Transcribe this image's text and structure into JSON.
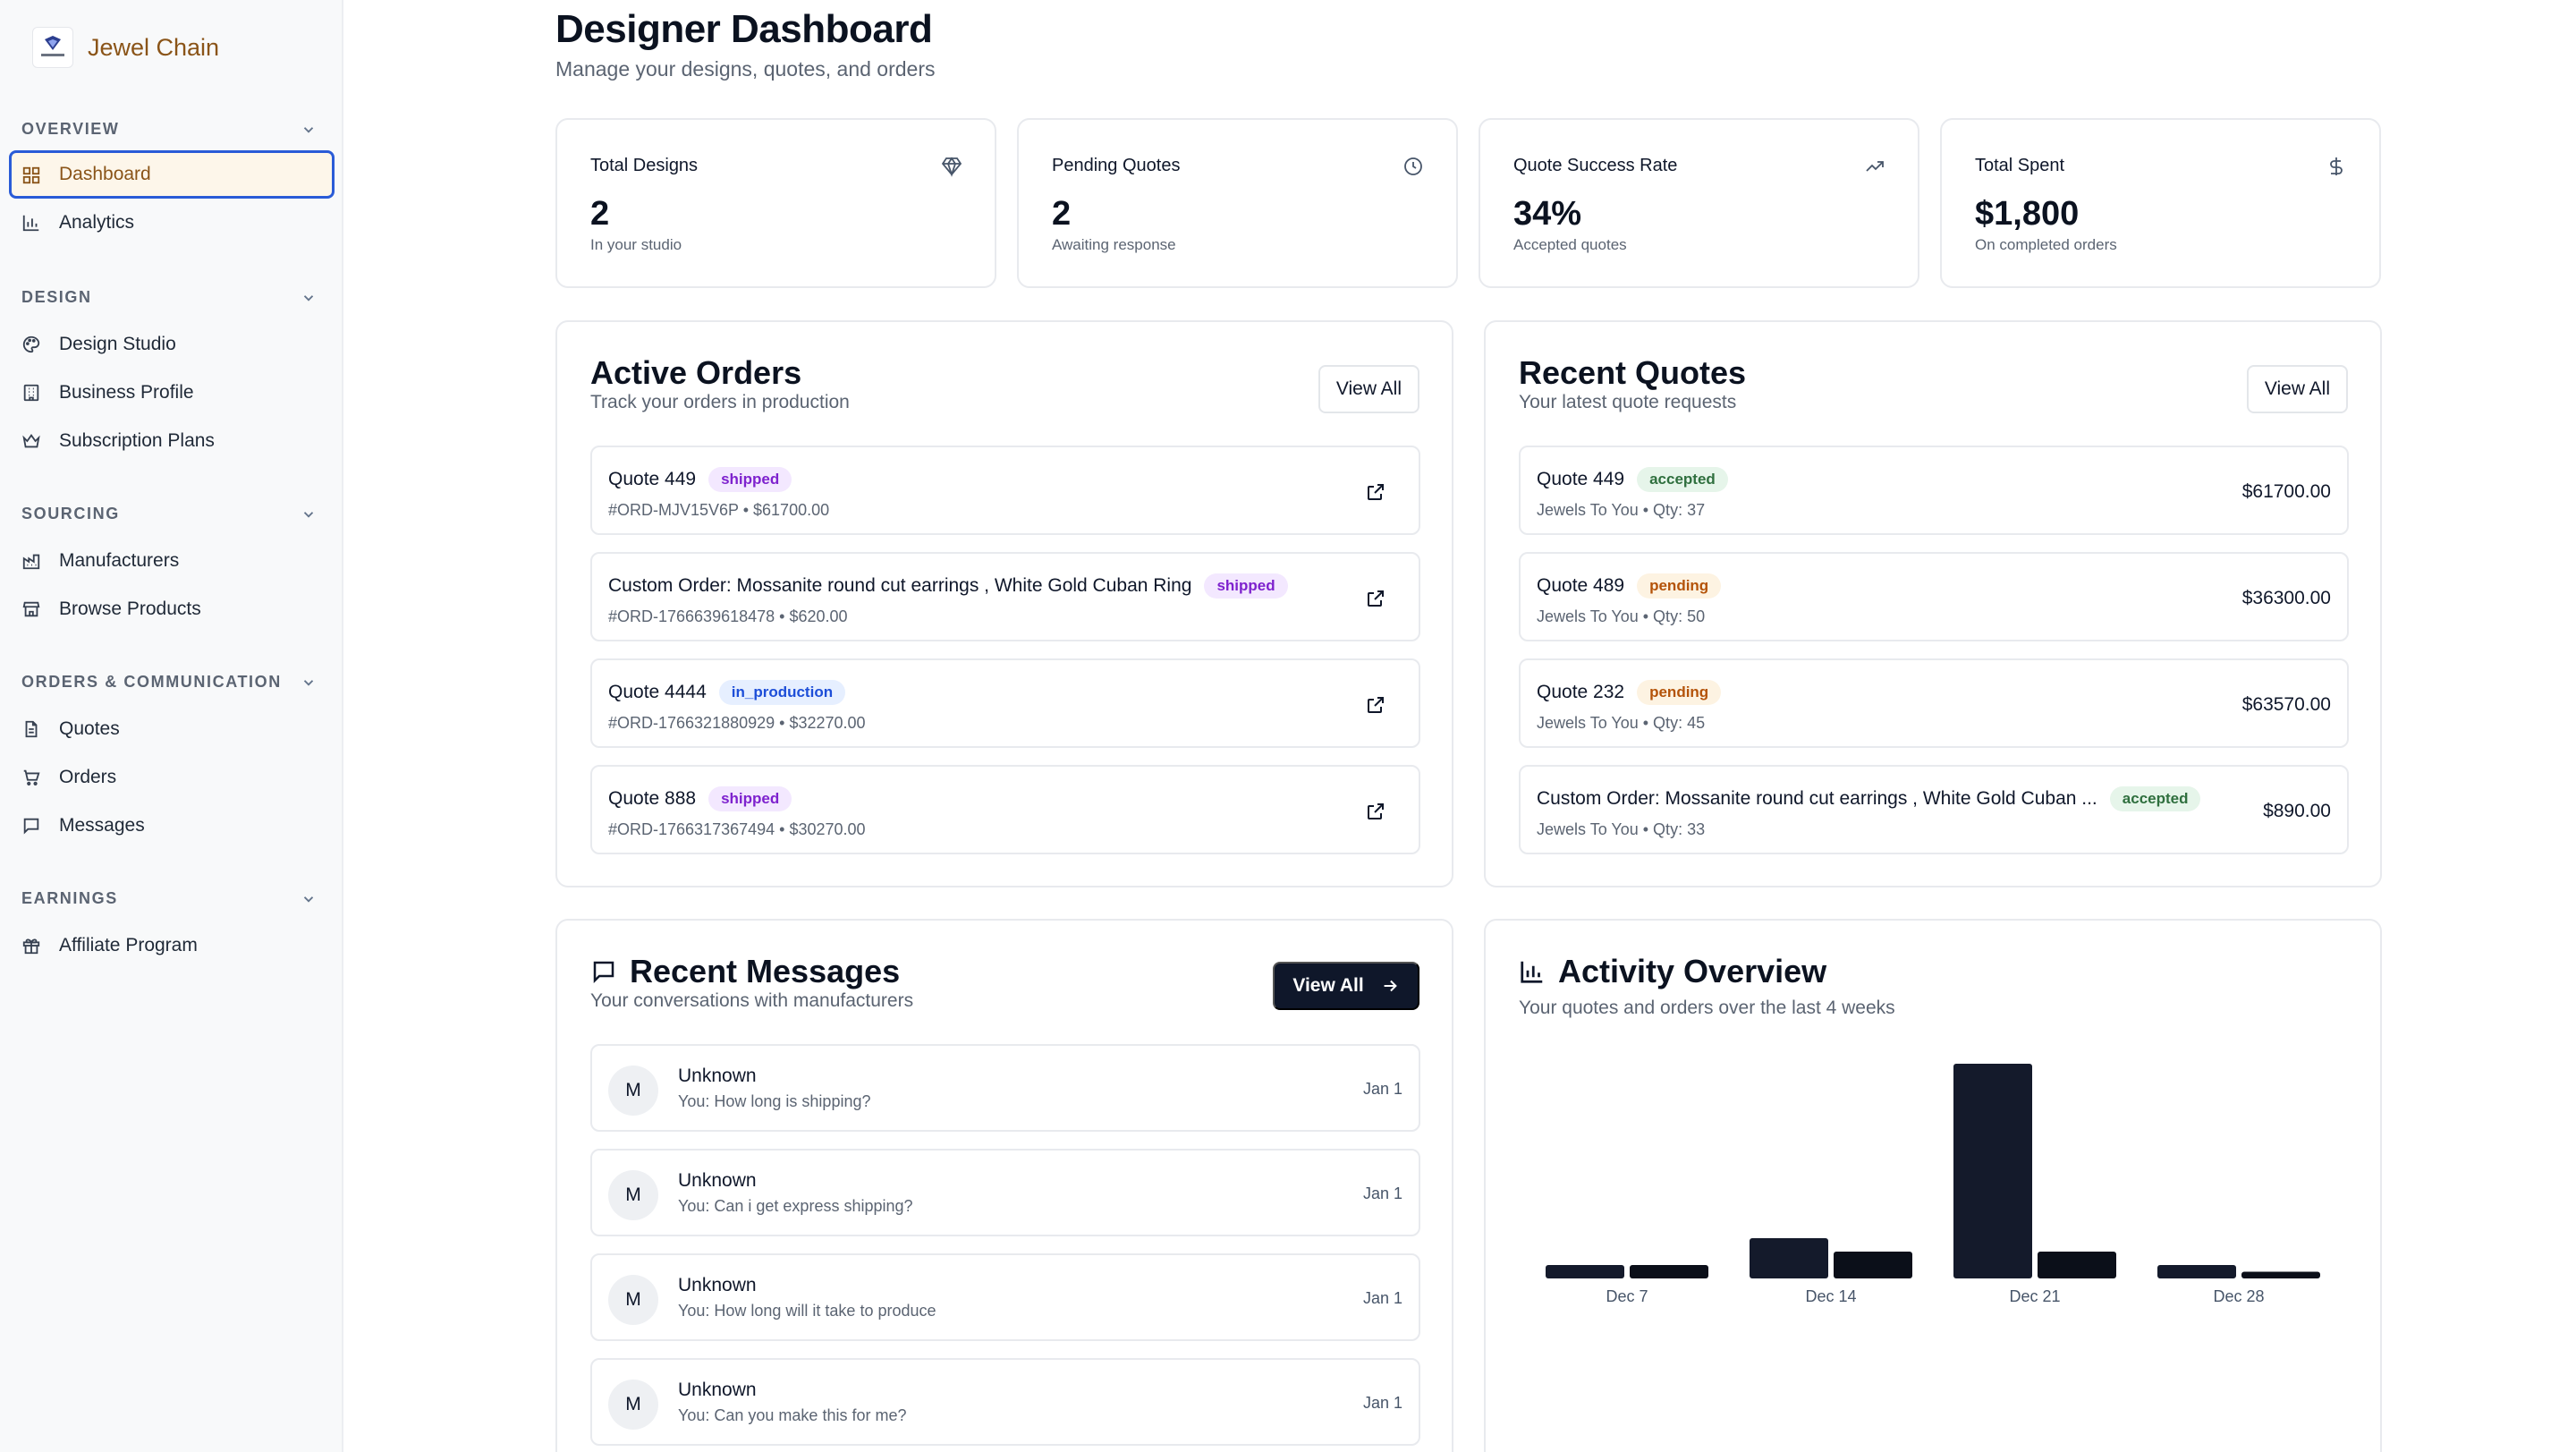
{
  "app": {
    "name": "Jewel Chain"
  },
  "sidebar": {
    "groups": [
      {
        "title": "OVERVIEW",
        "items": [
          {
            "label": "Dashboard",
            "icon": "layout-grid-icon",
            "active": true
          },
          {
            "label": "Analytics",
            "icon": "bar-chart-icon"
          }
        ]
      },
      {
        "title": "DESIGN",
        "items": [
          {
            "label": "Design Studio",
            "icon": "palette-icon"
          },
          {
            "label": "Business Profile",
            "icon": "building-icon"
          },
          {
            "label": "Subscription Plans",
            "icon": "crown-icon"
          }
        ]
      },
      {
        "title": "SOURCING",
        "items": [
          {
            "label": "Manufacturers",
            "icon": "factory-icon"
          },
          {
            "label": "Browse Products",
            "icon": "store-icon"
          }
        ]
      },
      {
        "title": "ORDERS & COMMUNICATION",
        "items": [
          {
            "label": "Quotes",
            "icon": "file-text-icon"
          },
          {
            "label": "Orders",
            "icon": "cart-icon"
          },
          {
            "label": "Messages",
            "icon": "message-square-icon"
          }
        ]
      },
      {
        "title": "EARNINGS",
        "items": [
          {
            "label": "Affiliate Program",
            "icon": "gift-icon"
          }
        ]
      }
    ]
  },
  "header": {
    "title": "Designer Dashboard",
    "subtitle": "Manage your designs, quotes, and orders"
  },
  "stats": [
    {
      "label": "Total Designs",
      "value": "2",
      "hint": "In your studio",
      "icon": "gem-icon"
    },
    {
      "label": "Pending Quotes",
      "value": "2",
      "hint": "Awaiting response",
      "icon": "clock-icon"
    },
    {
      "label": "Quote Success Rate",
      "value": "34%",
      "hint": "Accepted quotes",
      "icon": "trending-up-icon"
    },
    {
      "label": "Total Spent",
      "value": "$1,800",
      "hint": "On completed orders",
      "icon": "dollar-icon"
    }
  ],
  "active_orders": {
    "title": "Active Orders",
    "subtitle": "Track your orders in production",
    "view_all": "View All",
    "rows": [
      {
        "title": "Quote 449",
        "status": "shipped",
        "meta": "#ORD-MJV15V6P • $61700.00"
      },
      {
        "title": "Custom Order: Mossanite round cut earrings , White Gold Cuban Ring",
        "status": "shipped",
        "meta": "#ORD-1766639618478 • $620.00"
      },
      {
        "title": "Quote 4444",
        "status": "in_production",
        "meta": "#ORD-1766321880929 • $32270.00"
      },
      {
        "title": "Quote 888",
        "status": "shipped",
        "meta": "#ORD-1766317367494 • $30270.00"
      }
    ]
  },
  "recent_quotes": {
    "title": "Recent Quotes",
    "subtitle": "Your latest quote requests",
    "view_all": "View All",
    "rows": [
      {
        "title": "Quote 449",
        "status": "accepted",
        "meta": "Jewels To You • Qty: 37",
        "amount": "$61700.00"
      },
      {
        "title": "Quote 489",
        "status": "pending",
        "meta": "Jewels To You • Qty: 50",
        "amount": "$36300.00"
      },
      {
        "title": "Quote 232",
        "status": "pending",
        "meta": "Jewels To You • Qty: 45",
        "amount": "$63570.00"
      },
      {
        "title": "Custom Order: Mossanite round cut earrings , White Gold Cuban ...",
        "status": "accepted",
        "meta": "Jewels To You • Qty: 33",
        "amount": "$890.00"
      }
    ]
  },
  "recent_messages": {
    "title": "Recent Messages",
    "subtitle": "Your conversations with manufacturers",
    "view_all": "View All",
    "rows": [
      {
        "avatar": "M",
        "name": "Unknown",
        "text": "You: How long is shipping?",
        "date": "Jan 1"
      },
      {
        "avatar": "M",
        "name": "Unknown",
        "text": "You: Can i get express shipping?",
        "date": "Jan 1"
      },
      {
        "avatar": "M",
        "name": "Unknown",
        "text": "You: How long will it take to produce",
        "date": "Jan 1"
      },
      {
        "avatar": "M",
        "name": "Unknown",
        "text": "You: Can you make this for me?",
        "date": "Jan 1"
      }
    ]
  },
  "activity": {
    "title": "Activity Overview",
    "subtitle": "Your quotes and orders over the last 4 weeks"
  },
  "chart_data": {
    "type": "bar",
    "categories": [
      "Dec 7",
      "Dec 14",
      "Dec 21",
      "Dec 28"
    ],
    "series": [
      {
        "values": [
          1,
          3,
          16,
          1
        ],
        "color": "#141a2b"
      },
      {
        "values": [
          1,
          2,
          2,
          0.5
        ],
        "color": "#0b0f19"
      }
    ],
    "ylim": [
      0,
      16
    ],
    "grid": false,
    "legend": "none"
  },
  "colors": {
    "brand": "#8a5418",
    "active_border": "#2a5bd7",
    "active_bg": "#fdf6ea",
    "dark": "#0f172a"
  }
}
